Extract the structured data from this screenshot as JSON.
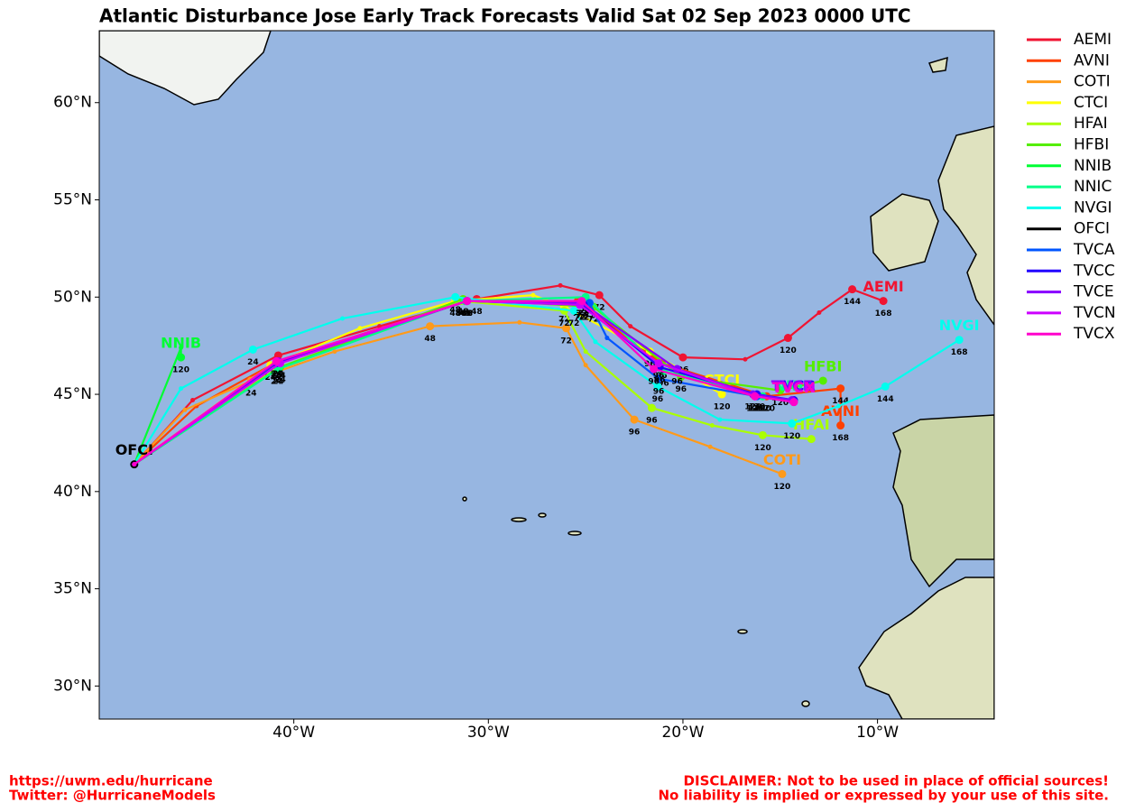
{
  "chart_data": {
    "type": "map",
    "title": "Atlantic Disturbance Jose Early Track Forecasts Valid Sat 02 Sep 2023 0000 UTC",
    "xlim": [
      -50,
      -4
    ],
    "ylim": [
      28.3,
      63.7
    ],
    "xticks": [
      {
        "value": -40,
        "label": "40°W"
      },
      {
        "value": -30,
        "label": "30°W"
      },
      {
        "value": -20,
        "label": "20°W"
      },
      {
        "value": -10,
        "label": "10°W"
      }
    ],
    "yticks": [
      {
        "value": 30,
        "label": "30°N"
      },
      {
        "value": 35,
        "label": "35°N"
      },
      {
        "value": 40,
        "label": "40°N"
      },
      {
        "value": 45,
        "label": "45°N"
      },
      {
        "value": 50,
        "label": "50°N"
      },
      {
        "value": 55,
        "label": "55°N"
      },
      {
        "value": 60,
        "label": "60°N"
      }
    ],
    "series": [
      {
        "name": "AEMI",
        "color": "#f01432",
        "x": [
          -48.2,
          -45.2,
          -40.8,
          -35.6,
          -30.6,
          -26.3,
          -24.3,
          -22.7,
          -20.0,
          -16.8,
          -14.6,
          -13.0,
          -11.3,
          -9.7
        ],
        "y": [
          41.4,
          44.7,
          47.0,
          48.5,
          49.9,
          50.6,
          50.1,
          48.5,
          46.9,
          46.8,
          47.9,
          49.2,
          50.4,
          49.8
        ],
        "labels": [
          null,
          null,
          24,
          null,
          48,
          null,
          72,
          null,
          96,
          null,
          120,
          null,
          144,
          168
        ]
      },
      {
        "name": "AVNI",
        "color": "#ff4000",
        "x": [
          -48.2,
          -45.0,
          -40.8,
          -31.2,
          -25.4,
          -21.1,
          -15.7,
          -11.9,
          -11.9
        ],
        "y": [
          41.4,
          44.4,
          46.7,
          49.8,
          49.8,
          46.6,
          44.9,
          45.3,
          43.4
        ],
        "labels": [
          null,
          null,
          24,
          48,
          72,
          96,
          120,
          144,
          168
        ]
      },
      {
        "name": "COTI",
        "color": "#ff9a1a",
        "x": [
          -48.2,
          -45.6,
          -42.2,
          -37.9,
          -33.0,
          -28.4,
          -26.0,
          -25.0,
          -22.5,
          -18.6,
          -14.9
        ],
        "y": [
          41.4,
          44.2,
          45.7,
          47.2,
          48.5,
          48.7,
          48.4,
          46.5,
          43.7,
          42.3,
          40.9
        ],
        "labels": [
          null,
          null,
          24,
          null,
          48,
          null,
          72,
          null,
          96,
          null,
          120
        ]
      },
      {
        "name": "CTCI",
        "color": "#ffff00",
        "x": [
          -48.2,
          -41.2,
          -36.6,
          -31.7,
          -27.7,
          -26.1,
          -21.7,
          -18.0
        ],
        "y": [
          41.4,
          46.5,
          48.4,
          49.8,
          50.1,
          49.5,
          47.2,
          45.0
        ],
        "labels": [
          null,
          24,
          null,
          48,
          null,
          72,
          96,
          120
        ]
      },
      {
        "name": "HFAI",
        "color": "#aaff00",
        "x": [
          -48.2,
          -40.9,
          -31.4,
          -26.1,
          -25.0,
          -21.6,
          -18.5,
          -15.9,
          -13.4
        ],
        "y": [
          41.4,
          46.3,
          49.8,
          49.3,
          47.2,
          44.3,
          43.4,
          42.9,
          42.7
        ],
        "labels": [
          null,
          24,
          48,
          72,
          null,
          96,
          null,
          120,
          null
        ]
      },
      {
        "name": "HFBI",
        "color": "#55ee00",
        "x": [
          -48.2,
          -40.7,
          -31.3,
          -24.6,
          -20.1,
          -15.0,
          -12.8
        ],
        "y": [
          41.4,
          46.4,
          49.9,
          49.5,
          45.9,
          45.2,
          45.7
        ],
        "labels": [
          null,
          24,
          48,
          72,
          96,
          120,
          null
        ]
      },
      {
        "name": "NNIB",
        "color": "#00ff33",
        "x": [
          -48.2,
          -45.8,
          -45.8
        ],
        "y": [
          41.4,
          47.4,
          46.9
        ],
        "labels": [
          null,
          null,
          120
        ]
      },
      {
        "name": "NNIC",
        "color": "#00ff88",
        "x": [
          -48.2,
          -40.8,
          -31.2,
          -25.0,
          -21.0,
          -15.9,
          -14.3
        ],
        "y": [
          41.4,
          46.3,
          49.8,
          50.0,
          46.2,
          44.9,
          44.7
        ],
        "labels": [
          null,
          24,
          48,
          72,
          96,
          120,
          null
        ]
      },
      {
        "name": "NVGI",
        "color": "#00ffee",
        "x": [
          -48.2,
          -45.8,
          -42.1,
          -37.5,
          -31.7,
          -25.6,
          -24.5,
          -21.3,
          -18.1,
          -14.4,
          -12.0,
          -9.6,
          -5.8
        ],
        "y": [
          41.4,
          45.3,
          47.3,
          48.9,
          50.0,
          49.3,
          47.7,
          45.4,
          43.7,
          43.5,
          44.4,
          45.4,
          47.8
        ],
        "labels": [
          null,
          null,
          24,
          null,
          48,
          72,
          null,
          96,
          null,
          120,
          null,
          144,
          168
        ]
      },
      {
        "name": "OFCI",
        "color": "#000000",
        "x": [
          -48.2
        ],
        "y": [
          41.4
        ],
        "labels": [
          null
        ]
      },
      {
        "name": "TVCA",
        "color": "#0055ff",
        "x": [
          -48.2,
          -40.9,
          -31.1,
          -24.8,
          -23.9,
          -21.25,
          -16.2,
          -14.3
        ],
        "y": [
          41.4,
          46.6,
          49.8,
          49.7,
          47.9,
          45.8,
          44.9,
          44.7
        ],
        "labels": [
          null,
          24,
          48,
          72,
          null,
          96,
          120,
          null
        ]
      },
      {
        "name": "TVCC",
        "color": "#2200ff",
        "x": [
          -48.2,
          -40.9,
          -31.1,
          -25.1,
          -21.2,
          -16.2,
          -14.3
        ],
        "y": [
          41.4,
          46.6,
          49.8,
          49.6,
          46.4,
          45.0,
          44.7
        ],
        "labels": [
          null,
          24,
          48,
          72,
          96,
          120,
          null
        ]
      },
      {
        "name": "TVCE",
        "color": "#8800ff",
        "x": [
          -48.2,
          -40.8,
          -31.1,
          -25.2,
          -20.3,
          -16.4,
          -14.4
        ],
        "y": [
          41.4,
          46.7,
          49.8,
          49.7,
          46.3,
          45.0,
          44.7
        ],
        "labels": [
          null,
          24,
          48,
          72,
          96,
          120,
          null
        ]
      },
      {
        "name": "TVCN",
        "color": "#cc00ff",
        "x": [
          -48.2,
          -40.7,
          -31.1,
          -25.3,
          -21.25,
          -16.3,
          -14.3
        ],
        "y": [
          41.4,
          46.6,
          49.8,
          49.6,
          46.6,
          44.9,
          44.6
        ],
        "labels": [
          null,
          24,
          48,
          72,
          96,
          120,
          null
        ]
      },
      {
        "name": "TVCX",
        "color": "#ff00cc",
        "x": [
          -48.2,
          -40.9,
          -31.1,
          -25.2,
          -21.5,
          -16.3,
          -14.3
        ],
        "y": [
          41.4,
          46.7,
          49.8,
          49.8,
          46.3,
          44.9,
          44.6
        ],
        "labels": [
          null,
          24,
          48,
          72,
          96,
          120,
          null
        ]
      }
    ]
  },
  "footer": {
    "left": [
      "https://uwm.edu/hurricane",
      "Twitter: @HurricaneModels"
    ],
    "right": [
      "DISCLAIMER: Not to be used in place of official sources!",
      "No liability is implied or expressed by your use of this site."
    ]
  }
}
